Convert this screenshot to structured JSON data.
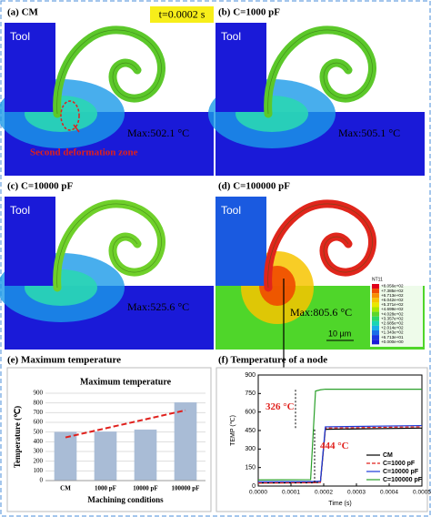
{
  "time_label": "t=0.0002 s",
  "panels": [
    {
      "label": "(a) CM",
      "tool": "Tool",
      "max": "Max:502.1 °C",
      "note": "Second deformation zone",
      "chip_color": "#5cc82a",
      "work_color": "#1a1ad8"
    },
    {
      "label": "(b) C=1000 pF",
      "tool": "Tool",
      "max": "Max:505.1 °C",
      "chip_color": "#5cc82a",
      "work_color": "#1a1ad8"
    },
    {
      "label": "(c) C=10000 pF",
      "tool": "Tool",
      "max": "Max:525.6 °C",
      "chip_color": "#6fd02a",
      "work_color": "#1a1ad8"
    },
    {
      "label": "(d) C=100000 pF",
      "tool": "Tool",
      "max": "Max:805.6 °C",
      "chip_color": "#e0261c",
      "work_color": "#4fd62a"
    }
  ],
  "contour_legend": {
    "title": "NT11",
    "labels": [
      "+8.056e+02",
      "+7.385e+02",
      "+6.713e+02",
      "+6.042e+02",
      "+5.371e+02",
      "+4.699e+02",
      "+4.028e+02",
      "+3.357e+02",
      "+2.685e+02",
      "+2.014e+02",
      "+1.343e+02",
      "+6.713e+01",
      "+0.000e+00"
    ],
    "colors": [
      "#e0001a",
      "#f04a00",
      "#f78f00",
      "#f7c400",
      "#e8e800",
      "#a8e800",
      "#5cd62a",
      "#2ad66a",
      "#1ad6b4",
      "#1ab0e8",
      "#1a6ee8",
      "#1a36e0",
      "#1a1ad8"
    ]
  },
  "scale_bar": "10 µm",
  "chart_data": [
    {
      "type": "bar",
      "panel_label": "(e) Maximum temperature",
      "title": "Maximum temperature",
      "categories": [
        "CM",
        "1000 pF",
        "10000 pF",
        "100000 pF"
      ],
      "values": [
        502.1,
        505.1,
        525.6,
        805.6
      ],
      "color": "#a9bcd6",
      "trend_color": "#e0201c",
      "ylabel": "Temperature (℃)",
      "xlabel": "Machining conditions",
      "ylim": [
        0,
        900
      ],
      "yticks": [
        0,
        100,
        200,
        300,
        400,
        500,
        600,
        700,
        800,
        900
      ],
      "grid": true
    },
    {
      "type": "line",
      "panel_label": "(f) Temperature of a node",
      "ylabel": "TEMP (℃)",
      "xlabel": "Time (s)",
      "x": [
        0,
        0.00016,
        0.000175,
        0.00019,
        0.000205,
        0.0005
      ],
      "series": [
        {
          "name": "CM",
          "color": "#000000",
          "values": [
            25,
            27,
            28,
            30,
            460,
            470
          ]
        },
        {
          "name": "C=1000 pF",
          "color": "#e0201c",
          "dash": true,
          "values": [
            25,
            27,
            28,
            30,
            470,
            480
          ]
        },
        {
          "name": "C=10000 pF",
          "color": "#1a3ad8",
          "values": [
            35,
            37,
            38,
            40,
            480,
            490
          ]
        },
        {
          "name": "C=100000 pF",
          "color": "#2aa02a",
          "values": [
            50,
            52,
            770,
            780,
            785,
            785
          ]
        }
      ],
      "annotations": [
        "326 °C",
        "444 °C"
      ],
      "xlim": [
        0,
        0.0005
      ],
      "xticks": [
        {
          "value": 0,
          "label": "0.0000"
        },
        {
          "value": 0.0001,
          "label": "0.0001"
        },
        {
          "value": 0.0002,
          "label": "0.0002"
        },
        {
          "value": 0.0003,
          "label": "0.0003"
        },
        {
          "value": 0.0004,
          "label": "0.0004"
        },
        {
          "value": 0.0005,
          "label": "0.0005"
        }
      ],
      "ylim": [
        0,
        900
      ],
      "yticks": [
        0,
        150,
        300,
        450,
        600,
        750,
        900
      ],
      "legend": "lower right"
    }
  ]
}
